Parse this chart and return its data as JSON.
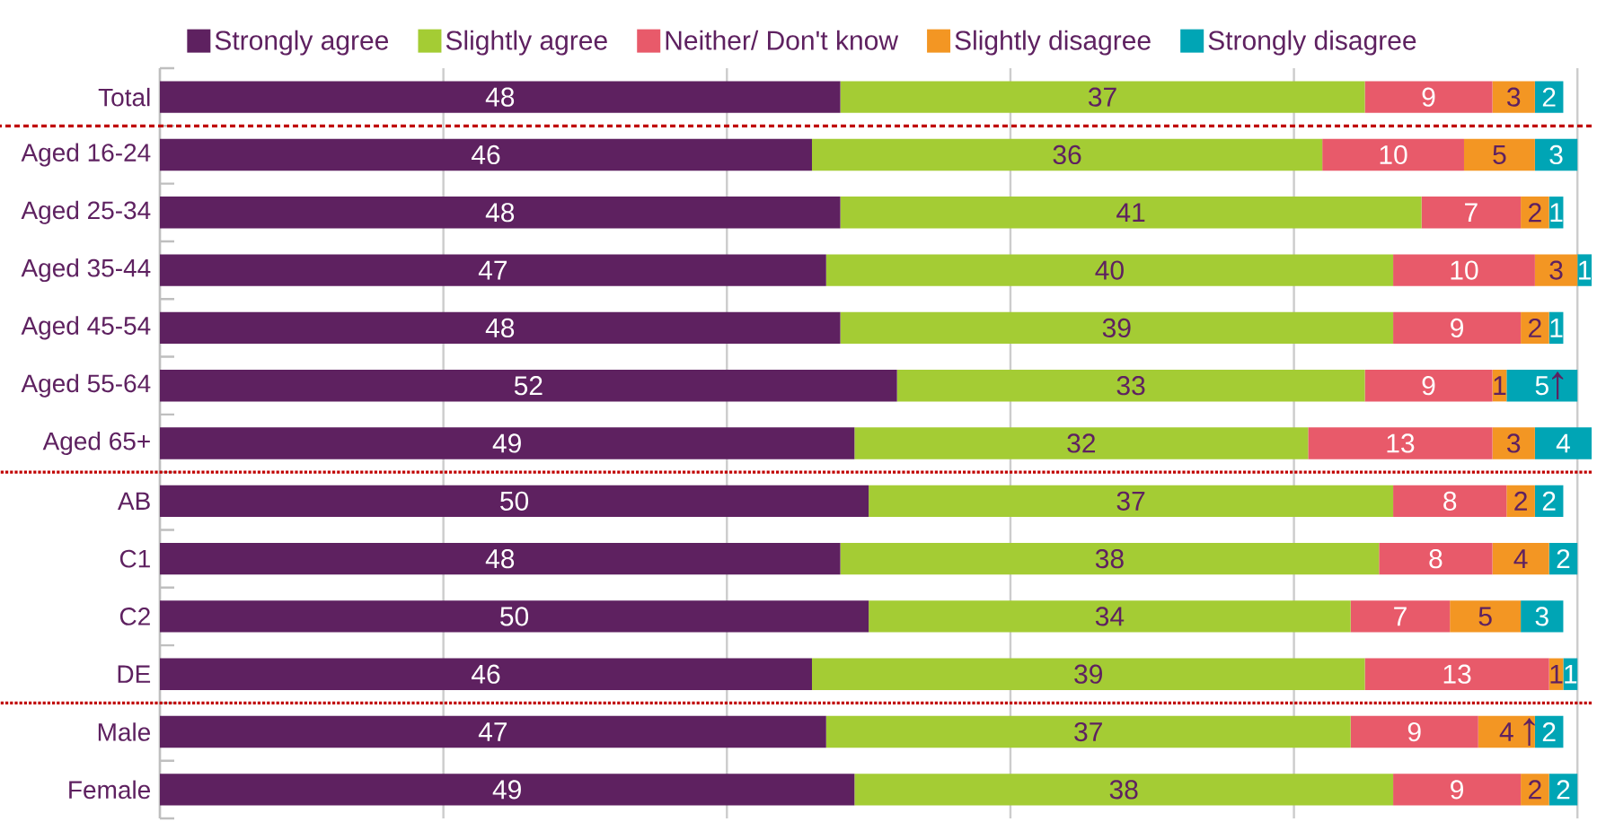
{
  "chart_data": {
    "type": "bar",
    "orientation": "horizontal",
    "stacked": true,
    "data_labels": true,
    "legend": "top",
    "grid": "x",
    "tick_labels": "y",
    "categories": [
      "Total",
      "Aged 16-24",
      "Aged 25-34",
      "Aged 35-44",
      "Aged 45-54",
      "Aged 55-64",
      "Aged 65+",
      "AB",
      "C1",
      "C2",
      "DE",
      "Male",
      "Female"
    ],
    "series": [
      {
        "name": "Strongly agree",
        "color": "#5e2160",
        "values": [
          48,
          46,
          48,
          47,
          48,
          52,
          49,
          50,
          48,
          50,
          46,
          47,
          49
        ]
      },
      {
        "name": "Slightly agree",
        "color": "#a4cc34",
        "values": [
          37,
          36,
          41,
          40,
          39,
          33,
          32,
          37,
          38,
          34,
          39,
          37,
          38
        ]
      },
      {
        "name": "Neither/ Don't know",
        "color": "#e85a6a",
        "values": [
          9,
          10,
          7,
          10,
          9,
          9,
          13,
          8,
          8,
          7,
          13,
          9,
          9
        ]
      },
      {
        "name": "Slightly disagree",
        "color": "#f39623",
        "values": [
          3,
          5,
          2,
          3,
          2,
          1,
          3,
          2,
          4,
          5,
          1,
          4,
          2
        ]
      },
      {
        "name": "Strongly disagree",
        "color": "#00a5b5",
        "values": [
          2,
          3,
          1,
          1,
          1,
          5,
          4,
          2,
          2,
          3,
          1,
          2,
          2
        ]
      }
    ],
    "annotations": [
      "↑",
      "↑"
    ]
  }
}
